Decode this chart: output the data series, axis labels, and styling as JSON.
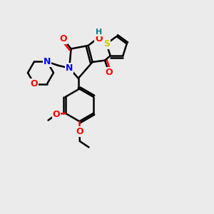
{
  "background_color": "#ebebeb",
  "atom_colors": {
    "O": "#ff0000",
    "N": "#0000ff",
    "S": "#cccc00",
    "H": "#008080",
    "C": "#000000"
  },
  "figsize": [
    3.0,
    3.0
  ],
  "dpi": 100
}
